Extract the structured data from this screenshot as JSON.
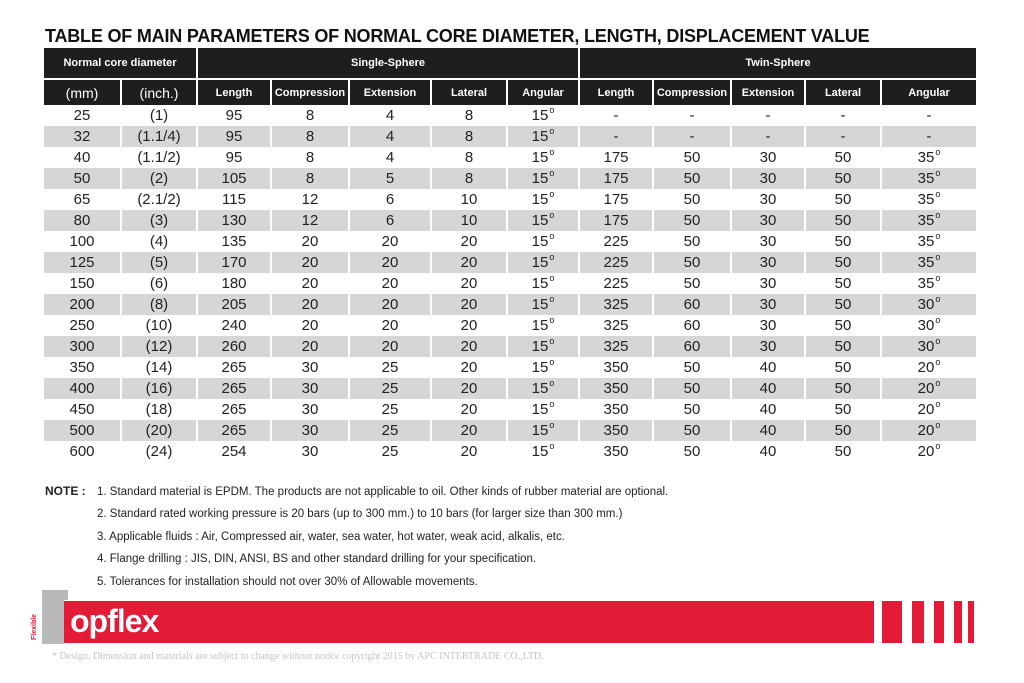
{
  "title": "TABLE OF MAIN PARAMETERS OF NORMAL CORE DIAMETER, LENGTH, DISPLACEMENT VALUE",
  "header": {
    "group1": "Normal core diameter",
    "group2": "Single-Sphere",
    "group3": "Twin-Sphere",
    "cols": [
      "(mm)",
      "(inch.)",
      "Length",
      "Compression",
      "Extension",
      "Lateral",
      "Angular",
      "Length",
      "Compression",
      "Extension",
      "Lateral",
      "Angular"
    ]
  },
  "rows": [
    [
      "25",
      "(1)",
      "95",
      "8",
      "4",
      "8",
      "15",
      "-",
      "-",
      "-",
      "-",
      "-"
    ],
    [
      "32",
      "(1.1/4)",
      "95",
      "8",
      "4",
      "8",
      "15",
      "-",
      "-",
      "-",
      "-",
      "-"
    ],
    [
      "40",
      "(1.1/2)",
      "95",
      "8",
      "4",
      "8",
      "15",
      "175",
      "50",
      "30",
      "50",
      "35"
    ],
    [
      "50",
      "(2)",
      "105",
      "8",
      "5",
      "8",
      "15",
      "175",
      "50",
      "30",
      "50",
      "35"
    ],
    [
      "65",
      "(2.1/2)",
      "115",
      "12",
      "6",
      "10",
      "15",
      "175",
      "50",
      "30",
      "50",
      "35"
    ],
    [
      "80",
      "(3)",
      "130",
      "12",
      "6",
      "10",
      "15",
      "175",
      "50",
      "30",
      "50",
      "35"
    ],
    [
      "100",
      "(4)",
      "135",
      "20",
      "20",
      "20",
      "15",
      "225",
      "50",
      "30",
      "50",
      "35"
    ],
    [
      "125",
      "(5)",
      "170",
      "20",
      "20",
      "20",
      "15",
      "225",
      "50",
      "30",
      "50",
      "35"
    ],
    [
      "150",
      "(6)",
      "180",
      "20",
      "20",
      "20",
      "15",
      "225",
      "50",
      "30",
      "50",
      "35"
    ],
    [
      "200",
      "(8)",
      "205",
      "20",
      "20",
      "20",
      "15",
      "325",
      "60",
      "30",
      "50",
      "30"
    ],
    [
      "250",
      "(10)",
      "240",
      "20",
      "20",
      "20",
      "15",
      "325",
      "60",
      "30",
      "50",
      "30"
    ],
    [
      "300",
      "(12)",
      "260",
      "20",
      "20",
      "20",
      "15",
      "325",
      "60",
      "30",
      "50",
      "30"
    ],
    [
      "350",
      "(14)",
      "265",
      "30",
      "25",
      "20",
      "15",
      "350",
      "50",
      "40",
      "50",
      "20"
    ],
    [
      "400",
      "(16)",
      "265",
      "30",
      "25",
      "20",
      "15",
      "350",
      "50",
      "40",
      "50",
      "20"
    ],
    [
      "450",
      "(18)",
      "265",
      "30",
      "25",
      "20",
      "15",
      "350",
      "50",
      "40",
      "50",
      "20"
    ],
    [
      "500",
      "(20)",
      "265",
      "30",
      "25",
      "20",
      "15",
      "350",
      "50",
      "40",
      "50",
      "20"
    ],
    [
      "600",
      "(24)",
      "254",
      "30",
      "25",
      "20",
      "15",
      "350",
      "50",
      "40",
      "50",
      "20"
    ]
  ],
  "degree_symbol": "o",
  "notes": {
    "label": "NOTE :",
    "items": [
      "1. Standard material is EPDM. The products are not applicable to oil. Other kinds of rubber material are optional.",
      "2. Standard rated working pressure is 20 bars (up to 300 mm.) to 10 bars (for larger size than 300 mm.)",
      "3. Applicable fluids : Air, Compressed air, water, sea water, hot water, weak acid, alkalis, etc.",
      "4. Flange drilling : JIS, DIN, ANSI, BS and other standard drilling for your specification.",
      "5. Tolerances for installation should not over 30% of Allowable movements."
    ]
  },
  "brand": {
    "logo": "Topflex",
    "tag": "Flexible",
    "color": "#e31b37"
  },
  "footer": "* Design, Dimension and materials are subject to change without notice  copyright 2015 by  APC INTERTRADE CO.,LTD."
}
